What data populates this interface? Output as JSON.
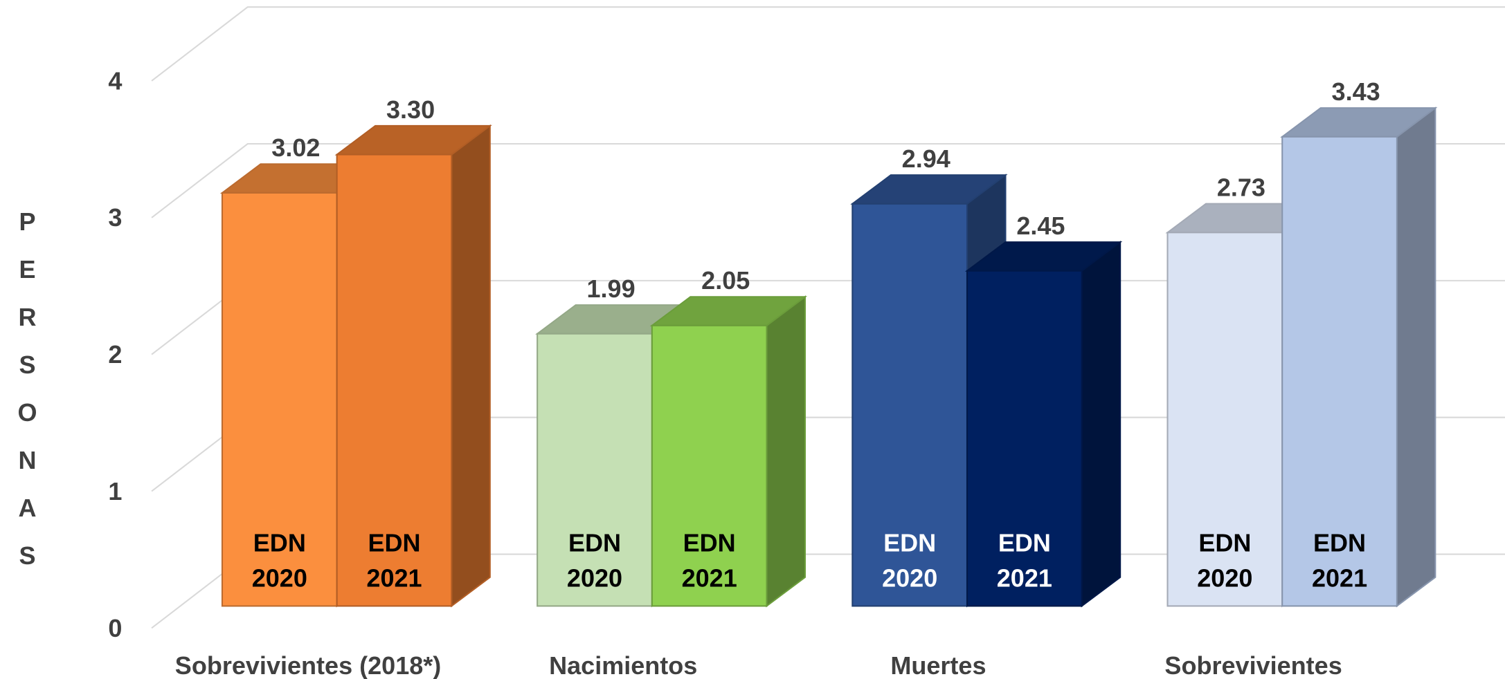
{
  "chart_data": {
    "type": "bar3d",
    "y_label": "PERSONAS",
    "categories": [
      "Sobrevivientes (2018*)",
      "Nacimientos",
      "Muertes",
      "Sobrevivientes"
    ],
    "series": [
      {
        "name": "EDN 2020",
        "colors": [
          "#FB8F3E",
          "#C5E0B4",
          "#2F5597",
          "#DAE3F3"
        ],
        "label_colors": [
          "#000000",
          "#000000",
          "#ffffff",
          "#000000"
        ],
        "values": [
          3.02,
          1.99,
          2.94,
          2.73
        ],
        "value_labels": [
          "3.02",
          "1.99",
          "2.94",
          "2.73"
        ]
      },
      {
        "name": "EDN 2021",
        "colors": [
          "#ED7D31",
          "#8FD14F",
          "#002060",
          "#B4C7E7"
        ],
        "label_colors": [
          "#000000",
          "#000000",
          "#ffffff",
          "#000000"
        ],
        "values": [
          3.3,
          2.05,
          2.45,
          3.43
        ],
        "value_labels": [
          "3.30",
          "2.05",
          "2.45",
          "3.43"
        ]
      }
    ],
    "ylim": [
      0,
      4
    ],
    "yticks": [
      0,
      1,
      2,
      3,
      4
    ],
    "grid": true
  }
}
